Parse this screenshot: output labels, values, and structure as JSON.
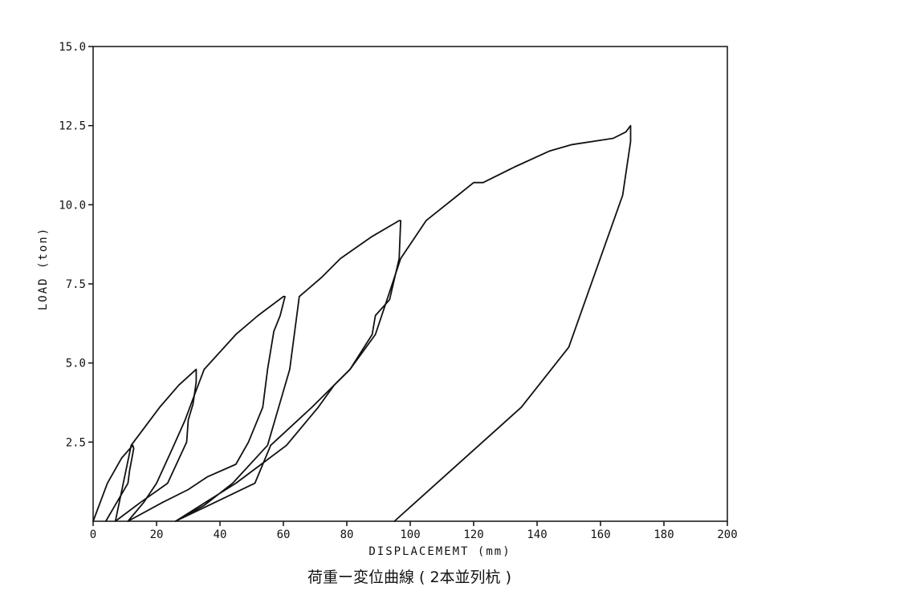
{
  "chart_data": {
    "type": "line",
    "title": "",
    "caption": "荷重ー変位曲線 ( 2本並列杭 )",
    "xlabel": "DISPLACEMEMT (mm)",
    "ylabel": "LOAD (ton)",
    "xlim": [
      0,
      200
    ],
    "ylim": [
      0,
      15
    ],
    "x_ticks": [
      0,
      20,
      40,
      60,
      80,
      100,
      120,
      140,
      160,
      180,
      200
    ],
    "x_tick_labels": [
      "0",
      "20",
      "40",
      "60",
      "80",
      "100",
      "120",
      "140",
      "160",
      "180",
      "200"
    ],
    "y_ticks": [
      2.5,
      5.0,
      7.5,
      10.0,
      12.5,
      15.0
    ],
    "y_tick_labels": [
      "2.5",
      "5.0",
      "7.5",
      "10.0",
      "12.5",
      "15.0"
    ],
    "grid": false,
    "legend": "none",
    "line_color": "#111111",
    "series": [
      {
        "x": [
          0,
          4.5,
          9,
          12.5,
          12.8,
          11.5,
          11,
          4
        ],
        "y": [
          0,
          1.2,
          2.0,
          2.4,
          2.3,
          1.6,
          1.2,
          0
        ]
      },
      {
        "x": [
          7,
          12,
          21,
          27,
          32.5,
          32.5,
          31.5,
          30,
          29.5,
          23.5,
          15,
          7
        ],
        "y": [
          0,
          2.4,
          3.6,
          4.3,
          4.8,
          4.4,
          3.7,
          3.2,
          2.5,
          1.2,
          0.6,
          0
        ]
      },
      {
        "x": [
          11,
          16,
          20,
          25,
          29,
          32,
          35,
          45,
          52,
          60,
          60.5,
          59,
          57,
          55,
          53.5,
          49,
          45,
          36,
          30,
          22,
          11
        ],
        "y": [
          0,
          0.6,
          1.2,
          2.3,
          3.2,
          4.0,
          4.8,
          5.9,
          6.5,
          7.1,
          7.1,
          6.5,
          6.0,
          4.8,
          3.6,
          2.5,
          1.8,
          1.4,
          1.0,
          0.6,
          0
        ]
      },
      {
        "x": [
          26,
          35,
          44,
          55,
          62,
          65,
          72,
          78,
          88,
          96.5,
          97,
          96.5,
          93.5,
          89,
          88,
          81,
          76,
          71,
          61,
          53,
          45,
          26
        ],
        "y": [
          0,
          0.5,
          1.2,
          2.4,
          4.8,
          7.1,
          7.7,
          8.3,
          9.0,
          9.5,
          9.5,
          8.3,
          7.0,
          6.5,
          5.9,
          4.8,
          4.3,
          3.6,
          2.4,
          1.8,
          1.2,
          0
        ]
      },
      {
        "x": [
          95,
          135,
          150,
          167,
          169.5,
          169.5,
          168,
          164,
          151,
          144,
          133,
          123,
          120,
          115,
          105,
          97,
          93,
          89,
          81,
          69,
          56,
          51,
          26
        ],
        "y": [
          0,
          3.6,
          5.5,
          10.3,
          12.0,
          12.5,
          12.3,
          12.1,
          11.9,
          11.7,
          11.2,
          10.7,
          10.7,
          10.3,
          9.5,
          8.3,
          7.1,
          5.9,
          4.8,
          3.6,
          2.4,
          1.2,
          0
        ]
      }
    ]
  }
}
